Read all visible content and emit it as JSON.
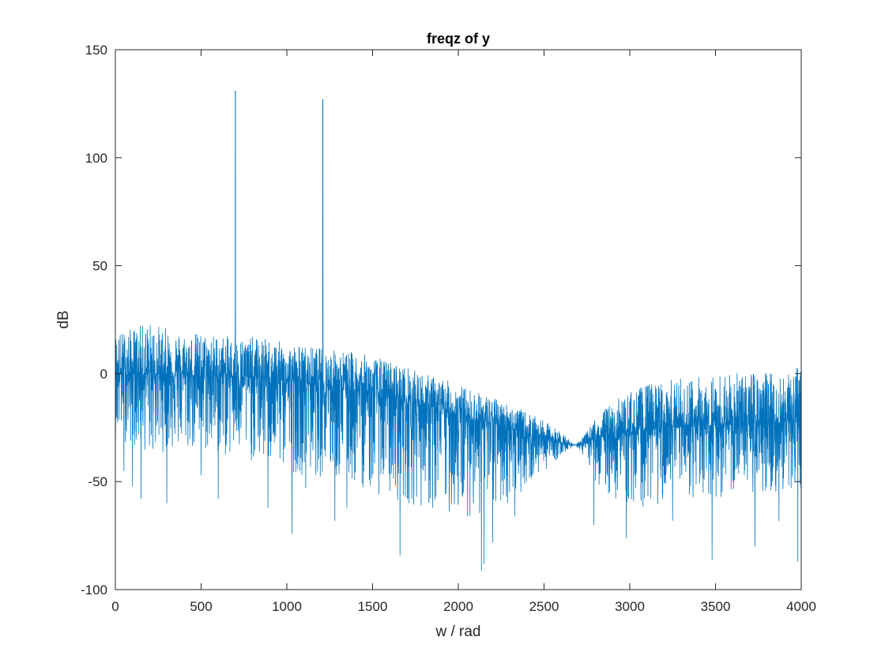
{
  "chart_data": {
    "type": "line",
    "title": "freqz of y",
    "xlabel": "w / rad",
    "ylabel": "dB",
    "xlim": [
      0,
      4000
    ],
    "ylim": [
      -100,
      150
    ],
    "xticks": [
      "0",
      "500",
      "1000",
      "1500",
      "2000",
      "2500",
      "3000",
      "3500",
      "4000"
    ],
    "yticks": [
      "-100",
      "-50",
      "0",
      "50",
      "100",
      "150"
    ],
    "grid": false,
    "line_color": "#0072BD",
    "series": [
      {
        "x": [
          0,
          100,
          200,
          300,
          400,
          500,
          600,
          700,
          800,
          900,
          1000,
          1100,
          1200,
          1300,
          1400,
          1500,
          1600,
          1700,
          1800,
          1900,
          2000,
          2100,
          2200,
          2300,
          2400,
          2500,
          2600,
          2680,
          2750,
          2800,
          2900,
          3000,
          3100,
          3200,
          3300,
          3400,
          3500,
          3600,
          3700,
          3800,
          3900,
          4000
        ],
        "y_center": [
          0,
          0,
          0,
          0,
          0,
          -1,
          -1,
          -1,
          -2,
          -2,
          -3,
          -4,
          -5,
          -6,
          -8,
          -9,
          -11,
          -13,
          -15,
          -17,
          -19,
          -21,
          -23,
          -25,
          -28,
          -30,
          -32,
          -33,
          -32,
          -30,
          -28,
          -27,
          -26,
          -25,
          -25,
          -24,
          -24,
          -23,
          -23,
          -22,
          -22,
          -22
        ],
        "y_max": [
          19,
          21,
          24,
          21,
          19,
          19,
          18,
          17,
          17,
          16,
          14,
          13,
          12,
          11,
          10,
          8,
          6,
          3,
          0,
          -2,
          -5,
          -8,
          -11,
          -14,
          -18,
          -22,
          -27,
          -33,
          -27,
          -20,
          -13,
          -8,
          -5,
          -3,
          -2,
          -1,
          0,
          0,
          1,
          1,
          2,
          3
        ],
        "y_min": [
          -30,
          -33,
          -38,
          -36,
          -36,
          -37,
          -38,
          -40,
          -41,
          -43,
          -45,
          -47,
          -48,
          -50,
          -52,
          -55,
          -58,
          -60,
          -62,
          -64,
          -66,
          -66,
          -65,
          -60,
          -52,
          -45,
          -38,
          -33,
          -40,
          -50,
          -58,
          -62,
          -62,
          -60,
          -58,
          -58,
          -58,
          -57,
          -56,
          -55,
          -55,
          -55
        ],
        "outliers": [
          [
            50,
            -45
          ],
          [
            100,
            -52
          ],
          [
            150,
            -58
          ],
          [
            300,
            -60
          ],
          [
            500,
            -47
          ],
          [
            600,
            -58
          ],
          [
            890,
            -62
          ],
          [
            1030,
            -74
          ],
          [
            1110,
            -53
          ],
          [
            1210,
            -76
          ],
          [
            1280,
            -68
          ],
          [
            1350,
            -62
          ],
          [
            1660,
            -84
          ],
          [
            1850,
            -62
          ],
          [
            2135,
            -91
          ],
          [
            2150,
            -88
          ],
          [
            2200,
            -78
          ],
          [
            2330,
            -66
          ],
          [
            2790,
            -70
          ],
          [
            2980,
            -76
          ],
          [
            3250,
            -68
          ],
          [
            3480,
            -86
          ],
          [
            3730,
            -80
          ],
          [
            3870,
            -68
          ],
          [
            3980,
            -87
          ]
        ],
        "peaks": [
          [
            700,
            131
          ],
          [
            1210,
            127
          ]
        ]
      }
    ]
  }
}
